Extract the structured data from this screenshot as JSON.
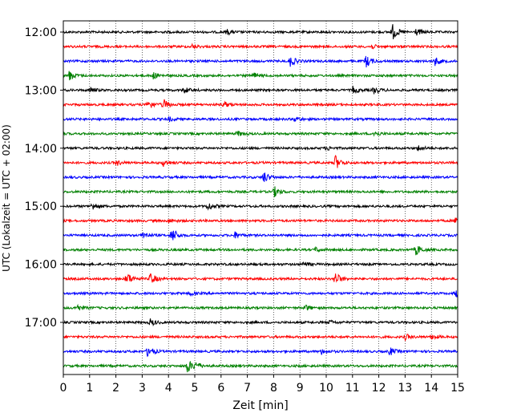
{
  "chart_data": {
    "type": "line",
    "title": "",
    "xlabel": "Zeit  [min]",
    "ylabel": "UTC (Lokalzeit = UTC + 02:00)",
    "xlim": [
      0,
      15
    ],
    "x_ticks": [
      "0",
      "1",
      "2",
      "3",
      "4",
      "5",
      "6",
      "7",
      "8",
      "9",
      "10",
      "11",
      "12",
      "13",
      "14",
      "15"
    ],
    "y_ticks": [
      "12:00",
      "13:00",
      "14:00",
      "15:00",
      "16:00",
      "17:00"
    ],
    "grid": "vertical dotted",
    "row_minutes": 15,
    "trace_colors": [
      "#000000",
      "#ff0000",
      "#0000ff",
      "#008000"
    ],
    "traces": [
      {
        "start": "12:00",
        "events": [
          [
            6.2,
            0.4
          ],
          [
            12.5,
            1.2
          ],
          [
            13.4,
            0.5
          ]
        ]
      },
      {
        "start": "12:15",
        "events": [
          [
            4.9,
            0.3
          ],
          [
            11.7,
            0.3
          ]
        ]
      },
      {
        "start": "12:30",
        "events": [
          [
            8.6,
            0.9
          ],
          [
            11.5,
            0.9
          ],
          [
            14.1,
            0.7
          ]
        ]
      },
      {
        "start": "12:45",
        "events": [
          [
            0.2,
            0.8
          ],
          [
            3.4,
            0.5
          ],
          [
            7.2,
            0.5
          ]
        ]
      },
      {
        "start": "13:00",
        "events": [
          [
            1.0,
            0.4
          ],
          [
            4.6,
            0.4
          ],
          [
            11.0,
            0.5
          ],
          [
            11.8,
            0.5
          ]
        ]
      },
      {
        "start": "13:15",
        "events": [
          [
            3.2,
            0.8
          ],
          [
            3.8,
            0.8
          ],
          [
            6.1,
            0.4
          ]
        ]
      },
      {
        "start": "13:30",
        "events": [
          [
            4.0,
            0.3
          ],
          [
            8.8,
            0.4
          ]
        ]
      },
      {
        "start": "13:45",
        "events": [
          [
            6.6,
            0.4
          ],
          [
            11.8,
            0.4
          ]
        ]
      },
      {
        "start": "14:00",
        "events": [
          [
            10.0,
            0.3
          ],
          [
            13.5,
            0.4
          ]
        ]
      },
      {
        "start": "14:15",
        "events": [
          [
            2.0,
            0.4
          ],
          [
            3.8,
            0.5
          ],
          [
            10.3,
            1.3
          ]
        ]
      },
      {
        "start": "14:30",
        "events": [
          [
            7.6,
            0.9
          ]
        ]
      },
      {
        "start": "14:45",
        "events": [
          [
            8.0,
            0.8
          ]
        ]
      },
      {
        "start": "15:00",
        "events": [
          [
            1.1,
            0.6
          ],
          [
            5.5,
            0.6
          ]
        ]
      },
      {
        "start": "15:15",
        "events": [
          [
            4.0,
            0.3
          ],
          [
            14.9,
            0.5
          ]
        ]
      },
      {
        "start": "15:30",
        "events": [
          [
            3.0,
            0.6
          ],
          [
            4.1,
            1.3
          ],
          [
            6.5,
            0.5
          ]
        ]
      },
      {
        "start": "15:45",
        "events": [
          [
            9.6,
            0.3
          ],
          [
            13.4,
            0.8
          ]
        ]
      },
      {
        "start": "16:00",
        "events": [
          [
            9.1,
            0.3
          ]
        ]
      },
      {
        "start": "16:15",
        "events": [
          [
            2.4,
            1.0
          ],
          [
            3.3,
            0.9
          ],
          [
            10.3,
            1.2
          ]
        ]
      },
      {
        "start": "16:30",
        "events": [
          [
            4.8,
            0.3
          ],
          [
            14.9,
            0.6
          ]
        ]
      },
      {
        "start": "16:45",
        "events": [
          [
            0.5,
            0.5
          ],
          [
            9.2,
            0.4
          ]
        ]
      },
      {
        "start": "17:00",
        "events": [
          [
            3.3,
            0.5
          ],
          [
            10.1,
            0.3
          ]
        ]
      },
      {
        "start": "17:15",
        "events": [
          [
            13.0,
            0.4
          ],
          [
            14.0,
            0.4
          ]
        ]
      },
      {
        "start": "17:30",
        "events": [
          [
            3.2,
            0.9
          ],
          [
            9.8,
            0.4
          ],
          [
            12.4,
            0.6
          ]
        ]
      },
      {
        "start": "17:45",
        "events": [
          [
            4.7,
            1.1
          ],
          [
            5.0,
            0.5
          ]
        ]
      }
    ]
  }
}
